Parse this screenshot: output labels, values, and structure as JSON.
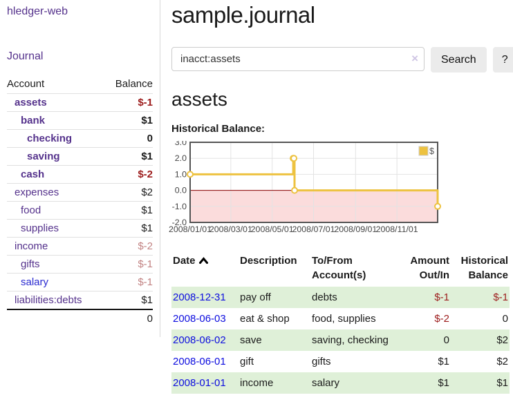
{
  "app": {
    "title": "hledger-web"
  },
  "sidebar": {
    "nav": [
      {
        "label": "Journal"
      }
    ],
    "accounts_table": {
      "headers": [
        "Account",
        "Balance"
      ],
      "rows": [
        {
          "account": "assets",
          "indent": 1,
          "bold": true,
          "balance": "$-1",
          "balance_style": "neg-strong"
        },
        {
          "account": "bank",
          "indent": 2,
          "bold": true,
          "balance": "$1",
          "balance_style": ""
        },
        {
          "account": "checking",
          "indent": 3,
          "bold": true,
          "balance": "0",
          "balance_style": ""
        },
        {
          "account": "saving",
          "indent": 3,
          "bold": true,
          "balance": "$1",
          "balance_style": ""
        },
        {
          "account": "cash",
          "indent": 2,
          "bold": true,
          "balance": "$-2",
          "balance_style": "neg-strong"
        },
        {
          "account": "expenses",
          "indent": 1,
          "bold": false,
          "balance": "$2",
          "balance_style": ""
        },
        {
          "account": "food",
          "indent": 2,
          "bold": false,
          "balance": "$1",
          "balance_style": ""
        },
        {
          "account": "supplies",
          "indent": 2,
          "bold": false,
          "balance": "$1",
          "balance_style": ""
        },
        {
          "account": "income",
          "indent": 1,
          "bold": false,
          "balance": "$-2",
          "balance_style": "neg-soft"
        },
        {
          "account": "gifts",
          "indent": 2,
          "bold": false,
          "balance": "$-1",
          "balance_style": "neg-soft"
        },
        {
          "account": "salary",
          "indent": 2,
          "bold": false,
          "link_style": "blue",
          "balance": "$-1",
          "balance_style": "neg-soft"
        },
        {
          "account": "liabilities:debts",
          "indent": 1,
          "bold": false,
          "balance": "$1",
          "balance_style": ""
        }
      ],
      "total": "0"
    }
  },
  "header": {
    "title": "sample.journal"
  },
  "search": {
    "value": "inacct:assets",
    "clear_icon": "×",
    "button_label": "Search",
    "help_label": "?"
  },
  "account_page": {
    "title": "assets",
    "chart_label": "Historical Balance:"
  },
  "chart_data": {
    "type": "line",
    "title": "Historical Balance",
    "step": true,
    "series": [
      {
        "name": "$",
        "color": "#edc240",
        "points": [
          {
            "x": "2008-01-01",
            "y": 1
          },
          {
            "x": "2008-06-01",
            "y": 2
          },
          {
            "x": "2008-06-02",
            "y": 2
          },
          {
            "x": "2008-06-03",
            "y": 0
          },
          {
            "x": "2008-12-31",
            "y": -1
          }
        ]
      }
    ],
    "x_ticks": [
      "2008/01/01",
      "2008/03/01",
      "2008/05/01",
      "2008/07/01",
      "2008/09/01",
      "2008/11/01"
    ],
    "y_ticks": [
      3,
      2,
      1,
      0,
      -1,
      -2
    ],
    "xlim": [
      "2008-01-01",
      "2008-12-31"
    ],
    "ylim": [
      -2,
      3
    ],
    "grid": true,
    "legend_position": "top-right",
    "negative_region_color": "#fbdcdc",
    "zero_line_color": "#8b0000",
    "border_color": "#545454",
    "grid_color": "#e3e3e3"
  },
  "register": {
    "sort": {
      "column": "Date",
      "direction": "ascending"
    },
    "headers": [
      {
        "lines": [
          "Date"
        ],
        "align": "left",
        "sortable": true,
        "class": "c-date"
      },
      {
        "lines": [
          "Description"
        ],
        "align": "left",
        "class": "c-desc"
      },
      {
        "lines": [
          "To/From",
          "Account(s)"
        ],
        "align": "left",
        "class": "c-acct"
      },
      {
        "lines": [
          "Amount",
          "Out/In"
        ],
        "align": "right",
        "class": "c-amt"
      },
      {
        "lines": [
          "Historical",
          "Balance"
        ],
        "align": "right",
        "class": "c-bal"
      }
    ],
    "rows": [
      {
        "date": "2008-12-31",
        "description": "pay off",
        "accounts": "debts",
        "amount": "$-1",
        "amount_style": "neg",
        "balance": "$-1",
        "balance_style": "neg"
      },
      {
        "date": "2008-06-03",
        "description": "eat & shop",
        "accounts": "food, supplies",
        "amount": "$-2",
        "amount_style": "neg",
        "balance": "0",
        "balance_style": ""
      },
      {
        "date": "2008-06-02",
        "description": "save",
        "accounts": "saving, checking",
        "amount": "0",
        "amount_style": "",
        "balance": "$2",
        "balance_style": ""
      },
      {
        "date": "2008-06-01",
        "description": "gift",
        "accounts": "gifts",
        "amount": "$1",
        "amount_style": "",
        "balance": "$2",
        "balance_style": ""
      },
      {
        "date": "2008-01-01",
        "description": "income",
        "accounts": "salary",
        "amount": "$1",
        "amount_style": "",
        "balance": "$1",
        "balance_style": ""
      }
    ]
  },
  "colors": {
    "purple": "#55328c",
    "blue_link": "#2a2ad0",
    "date_link": "#0d0ddf",
    "neg_strong": "#9c1b1b",
    "neg_soft": "#c28383",
    "stripe": "#dff0d8",
    "chart_line": "#edc240",
    "chart_border": "#545454",
    "chart_negative_bg": "#fbdcdc",
    "chart_zero_line": "#8b0000",
    "button_bg": "#ebebeb",
    "input_border": "#ccc"
  }
}
